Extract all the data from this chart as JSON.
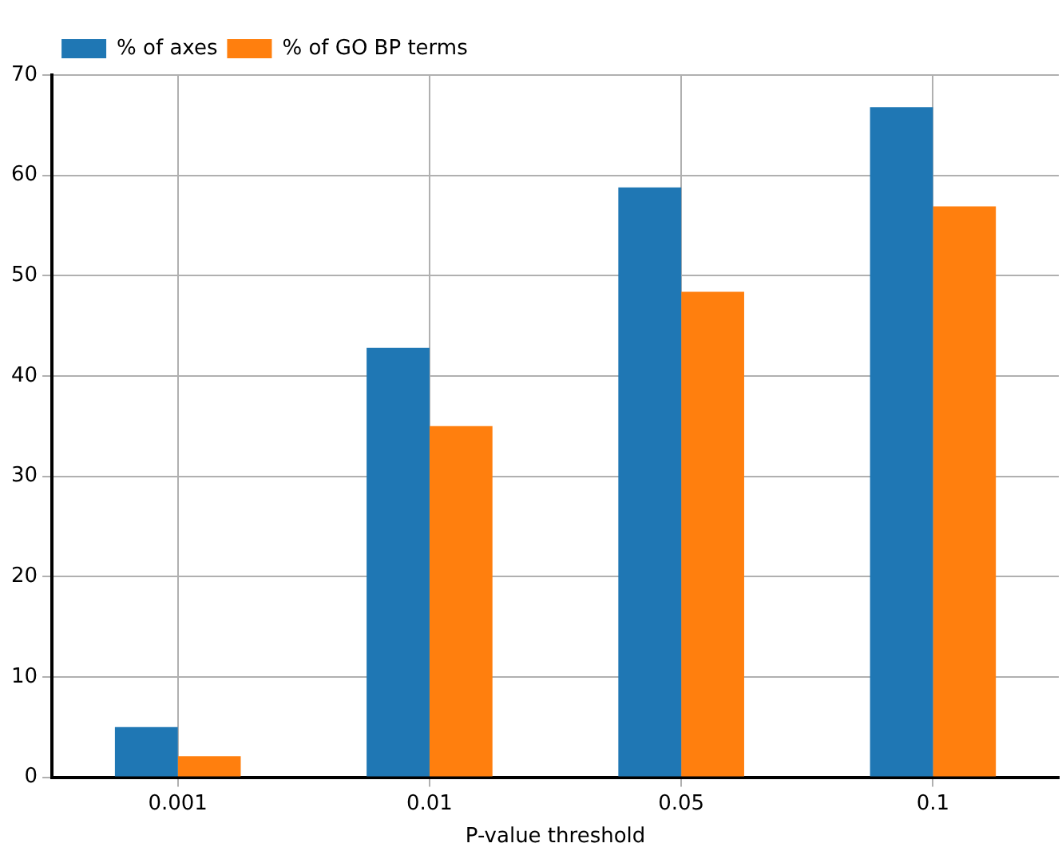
{
  "chart_data": {
    "type": "bar",
    "xlabel": "P-value threshold",
    "categories": [
      "0.001",
      "0.01",
      "0.05",
      "0.1"
    ],
    "series": [
      {
        "name": "% of axes",
        "color": "#1f77b4",
        "values": [
          5.0,
          42.8,
          58.8,
          66.8
        ]
      },
      {
        "name": "% of GO BP terms",
        "color": "#ff7f0e",
        "values": [
          2.1,
          35.0,
          48.4,
          56.9
        ]
      }
    ],
    "ylim": [
      0,
      70
    ],
    "yticks": [
      0,
      10,
      20,
      30,
      40,
      50,
      60,
      70
    ],
    "grid": true,
    "legend": "top left"
  }
}
